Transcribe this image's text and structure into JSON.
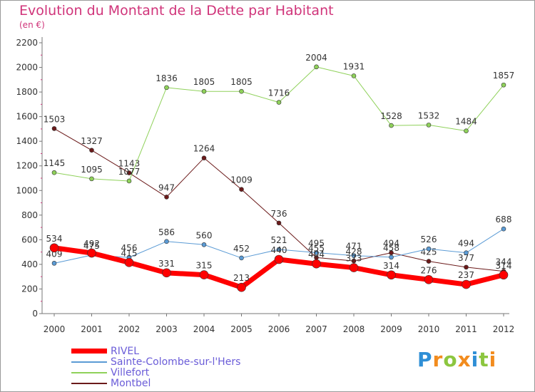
{
  "title": "Evolution du Montant de la Dette par Habitant",
  "subtitle": "(en €)",
  "brand": {
    "text": "Proxiti",
    "letters": [
      {
        "ch": "P",
        "color": "#2f8fd6"
      },
      {
        "ch": "r",
        "color": "#f28c1e"
      },
      {
        "ch": "o",
        "color": "#8cc63f"
      },
      {
        "ch": "x",
        "color": "#f28c1e"
      },
      {
        "ch": "i",
        "color": "#2f8fd6"
      },
      {
        "ch": "t",
        "color": "#8cc63f"
      },
      {
        "ch": "i",
        "color": "#f28c1e"
      }
    ]
  },
  "chart_data": {
    "type": "line",
    "title": "Evolution du Montant de la Dette par Habitant",
    "subtitle": "(en €)",
    "xlabel": "",
    "ylabel": "",
    "x": [
      2000,
      2001,
      2002,
      2003,
      2004,
      2005,
      2006,
      2007,
      2008,
      2009,
      2010,
      2011,
      2012
    ],
    "ylim": [
      0,
      2200
    ],
    "yticks": [
      0,
      200,
      400,
      600,
      800,
      1000,
      1200,
      1400,
      1600,
      1800,
      2000,
      2200
    ],
    "grid": false,
    "legend_position": "bottom-left",
    "series": [
      {
        "name": "Montbel",
        "color": "#6b1a1a",
        "width": 1,
        "values": [
          1503,
          1327,
          1143,
          947,
          1264,
          1009,
          736,
          455,
          428,
          494,
          425,
          377,
          344
        ],
        "labels": [
          "1503",
          "1327",
          "1143",
          "947",
          "1264",
          "1009",
          "736",
          "455",
          "428",
          "494",
          "425",
          "377",
          "344"
        ]
      },
      {
        "name": "Villefort",
        "color": "#8fd15a",
        "width": 1,
        "values": [
          1145,
          1095,
          1077,
          1836,
          1805,
          1805,
          1716,
          2004,
          1931,
          1528,
          1532,
          1484,
          1857
        ],
        "labels": [
          "1145",
          "1095",
          "1077",
          "1836",
          "1805",
          "1805",
          "1716",
          "2004",
          "1931",
          "1528",
          "1532",
          "1484",
          "1857"
        ]
      },
      {
        "name": "Sainte-Colombe-sur-l'Hers",
        "color": "#5b9bd5",
        "width": 1,
        "values": [
          409,
          475,
          456,
          586,
          560,
          452,
          521,
          495,
          471,
          458,
          526,
          494,
          688
        ],
        "labels": [
          "409",
          "475",
          "456",
          "586",
          "560",
          "452",
          "521",
          "495",
          "471",
          "458",
          "526",
          "494",
          "688"
        ]
      },
      {
        "name": "RIVEL",
        "color": "#ff0000",
        "width": 7,
        "values": [
          534,
          492,
          415,
          331,
          315,
          213,
          440,
          404,
          373,
          314,
          276,
          237,
          314
        ],
        "labels": [
          "534",
          "492",
          "415",
          "331",
          "315",
          "213",
          "440",
          "404",
          "373",
          "314",
          "276",
          "237",
          "314"
        ]
      }
    ]
  },
  "legend": [
    {
      "name": "RIVEL",
      "color": "#ff0000",
      "width": 7
    },
    {
      "name": "Sainte-Colombe-sur-l'Hers",
      "color": "#5b9bd5",
      "width": 1
    },
    {
      "name": "Villefort",
      "color": "#8fd15a",
      "width": 1
    },
    {
      "name": "Montbel",
      "color": "#6b1a1a",
      "width": 1
    }
  ]
}
